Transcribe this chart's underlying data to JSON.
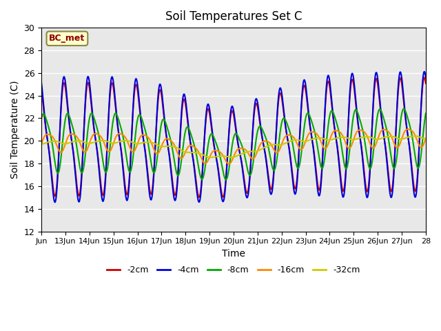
{
  "title": "Soil Temperatures Set C",
  "xlabel": "Time",
  "ylabel": "Soil Temperature (C)",
  "ylim": [
    12,
    30
  ],
  "xlim_start": 0,
  "xlim_end": 16,
  "annotation": "BC_met",
  "background_color": "#e8e8e8",
  "xtick_labels": [
    "Jun",
    "13Jun",
    "14Jun",
    "15Jun",
    "16Jun",
    "17Jun",
    "18Jun",
    "19Jun",
    "20Jun",
    "21Jun",
    "22Jun",
    "23Jun",
    "24Jun",
    "25Jun",
    "26Jun",
    "27Jun",
    "28"
  ],
  "xtick_positions": [
    0,
    1,
    2,
    3,
    4,
    5,
    6,
    7,
    8,
    9,
    10,
    11,
    12,
    13,
    14,
    15,
    16
  ],
  "grid_color": "#ffffff",
  "n_points": 3000,
  "linewidth": 1.5,
  "legend_colors": [
    "#cc0000",
    "#0000dd",
    "#00aa00",
    "#ff8800",
    "#cccc00"
  ],
  "legend_labels": [
    "-2cm",
    "-4cm",
    "-8cm",
    "-16cm",
    "-32cm"
  ]
}
